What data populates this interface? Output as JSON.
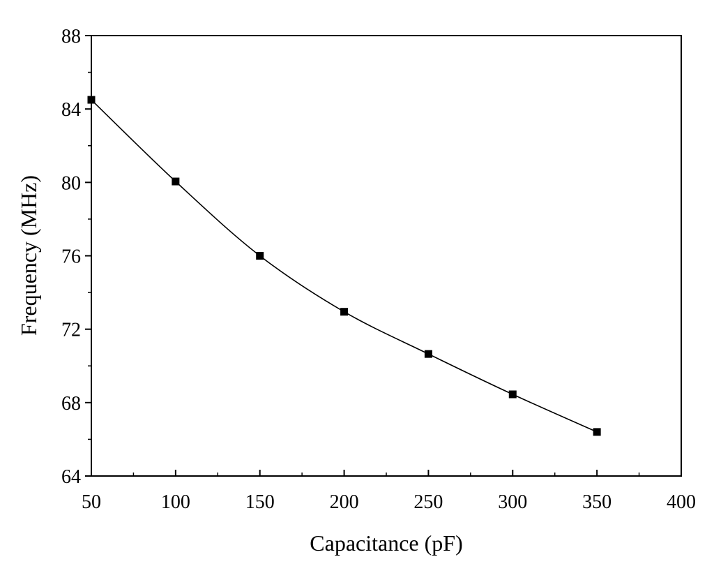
{
  "chart_data": {
    "type": "line",
    "xlabel": "Capacitance (pF)",
    "ylabel": "Frequency (MHz)",
    "xlim": [
      50,
      400
    ],
    "ylim": [
      64,
      88
    ],
    "xticks": [
      50,
      100,
      150,
      200,
      250,
      300,
      350,
      400
    ],
    "yticks": [
      64,
      68,
      72,
      76,
      80,
      84,
      88
    ],
    "grid": false,
    "marker": "square",
    "series": [
      {
        "x": [
          50,
          100,
          150,
          200,
          250,
          300,
          350
        ],
        "y": [
          84.5,
          80.05,
          76.0,
          72.95,
          70.65,
          68.45,
          66.4
        ]
      }
    ],
    "colors": {
      "line": "#000000",
      "marker": "#000000",
      "axes": "#000000"
    }
  }
}
